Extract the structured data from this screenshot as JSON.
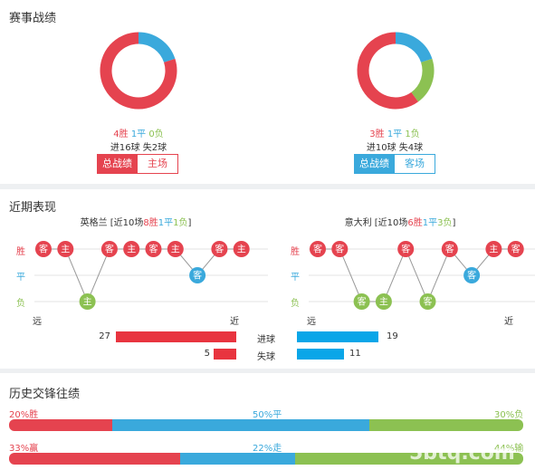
{
  "season": {
    "title": "赛事战绩",
    "left": {
      "wins": "4胜",
      "draws": "1平",
      "losses": "0负",
      "goals": "进16球  失2球",
      "tab_active": "总战绩",
      "tab_other": "主场",
      "ratio": {
        "win": 4,
        "draw": 1,
        "loss": 0
      },
      "colors": {
        "win": "#e5434f",
        "draw": "#3aa9dc",
        "loss": "#8cc152"
      }
    },
    "right": {
      "wins": "3胜",
      "draws": "1平",
      "losses": "1负",
      "goals": "进10球  失4球",
      "tab_active": "总战绩",
      "tab_other": "客场",
      "ratio": {
        "win": 3,
        "draw": 1,
        "loss": 1
      },
      "colors": {
        "win": "#e5434f",
        "draw": "#3aa9dc",
        "loss": "#8cc152"
      }
    }
  },
  "recent": {
    "title": "近期表现",
    "axis": {
      "win": "胜",
      "draw": "平",
      "loss": "负",
      "far": "远",
      "near": "近"
    },
    "left": {
      "team_prefix": "英格兰 [近10场",
      "wins": "8胜",
      "draws": "1平",
      "losses": "1负",
      "suffix": "]",
      "matches": [
        {
          "res": "win",
          "venue": "客"
        },
        {
          "res": "win",
          "venue": "主"
        },
        {
          "res": "loss",
          "venue": "主"
        },
        {
          "res": "win",
          "venue": "客"
        },
        {
          "res": "win",
          "venue": "主"
        },
        {
          "res": "win",
          "venue": "客"
        },
        {
          "res": "win",
          "venue": "主"
        },
        {
          "res": "draw",
          "venue": "客"
        },
        {
          "res": "win",
          "venue": "客"
        },
        {
          "res": "win",
          "venue": "主"
        }
      ]
    },
    "right": {
      "team_prefix": "意大利 [近10场",
      "wins": "6胜",
      "draws": "1平",
      "losses": "3负",
      "suffix": "]",
      "matches": [
        {
          "res": "win",
          "venue": "客"
        },
        {
          "res": "win",
          "venue": "客"
        },
        {
          "res": "loss",
          "venue": "客"
        },
        {
          "res": "loss",
          "venue": "主"
        },
        {
          "res": "win",
          "venue": "客"
        },
        {
          "res": "loss",
          "venue": "客"
        },
        {
          "res": "win",
          "venue": "客"
        },
        {
          "res": "draw",
          "venue": "客"
        },
        {
          "res": "win",
          "venue": "主"
        },
        {
          "res": "win",
          "venue": "客"
        }
      ]
    },
    "goals": {
      "scored_label": "进球",
      "conceded_label": "失球",
      "left_scored": 27,
      "left_conceded": 5,
      "right_scored": 19,
      "right_conceded": 11
    }
  },
  "history": {
    "title": "历史交锋往绩",
    "row1": {
      "left": "20%胜",
      "mid": "50%平",
      "right": "30%负",
      "values": [
        20,
        50,
        30
      ]
    },
    "row2": {
      "left": "33%赢",
      "mid": "22%走",
      "right": "44%输",
      "values": [
        33,
        22,
        44
      ]
    }
  },
  "watermark": "5btq.com"
}
